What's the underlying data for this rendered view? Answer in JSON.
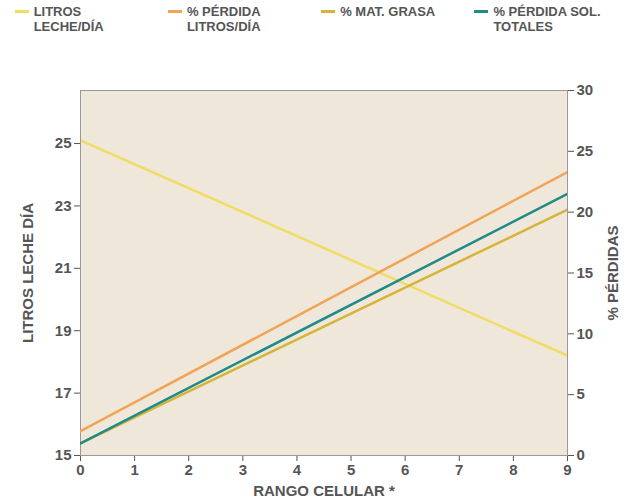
{
  "chart_data": {
    "type": "line",
    "x_label": "RANGO CELULAR *",
    "y_label": "LITROS LECHE DÍA",
    "y2_label": "% PÉRDIDAS",
    "x": [
      0,
      9
    ],
    "series": [
      {
        "name": "LITROS LECHE/DÍA",
        "color": "#f0dc62",
        "values": [
          25.1,
          18.2
        ]
      },
      {
        "name": "% PÉRDIDA LITROS/DÍA",
        "color": "#f0a455",
        "axis": "y2",
        "values": [
          2.0,
          23.3
        ]
      },
      {
        "name": "% MAT. GRASA",
        "color": "#d6b43a",
        "axis": "y2",
        "values": [
          1.0,
          20.2
        ]
      },
      {
        "name": "% PÉRDIDA SOL. TOTALES",
        "color": "#1f8a88",
        "axis": "y2",
        "values": [
          1.0,
          21.5
        ]
      }
    ],
    "xlim": [
      0,
      9
    ],
    "xticks": [
      0,
      1,
      2,
      3,
      4,
      5,
      6,
      7,
      8,
      9
    ],
    "ylim": [
      15,
      26.7
    ],
    "yticks": [
      15,
      17,
      19,
      21,
      23,
      25
    ],
    "y2lim": [
      0,
      30
    ],
    "y2ticks": [
      0,
      5,
      10,
      15,
      20,
      25,
      30
    ],
    "legend": "top"
  }
}
